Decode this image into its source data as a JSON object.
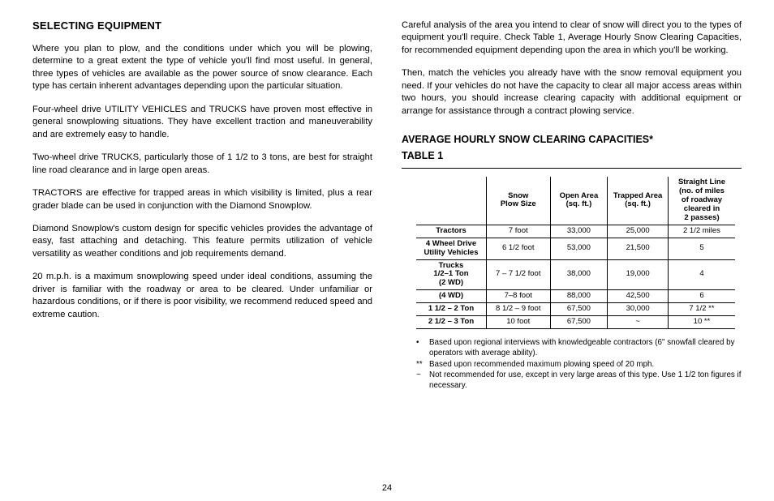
{
  "left": {
    "heading": "SELECTING EQUIPMENT",
    "paras": [
      "Where you plan to plow, and the conditions under which you will be plowing, determine to a great extent the type of vehicle you'll find most useful. In general, three types of vehicles are available as the power source of snow clearance. Each type has certain inherent advantages depending upon the particular situation.",
      "Four-wheel drive UTILITY VEHICLES and TRUCKS have proven most effective in general snowplowing situations. They have excellent traction and maneuverability and are extremely easy to handle.",
      "Two-wheel drive TRUCKS, particularly those of 1 1/2 to 3 tons, are best for straight line road clearance and in large open areas.",
      "TRACTORS are effective for trapped areas in which visibility is limited, plus a rear grader blade can be used in conjunction with the Diamond Snowplow.",
      "Diamond Snowplow's custom design for specific vehicles provides the advantage of easy, fast attaching and detaching. This feature permits uti­lization of vehicle versatility as weather conditions and job requirements demand.",
      "20 m.p.h. is a maximum snowplowing speed under ideal conditions, assuming the driver is familiar with the roadway or area to be cleared. Under unfamiliar or hazardous conditions, or if there is poor visibility, we recommend reduced speed and extreme caution."
    ]
  },
  "right": {
    "paras": [
      "Careful analysis of the area you intend to clear of snow will direct you to the types of equipment you'll require. Check Table 1, Average Hourly Snow Clearing Capacities, for recommended equipment depending upon the area in which you'll be working.",
      "Then, match the vehicles you already have with the snow removal equipment you need. If your vehicles do not have the capacity to clear all major access areas within two hours, you should increase clearing capacity with additional equipment or arrange for assistance through a contract plowing service."
    ],
    "table_title_1": "AVERAGE HOURLY SNOW CLEARING CAPACITIES*",
    "table_title_2": "TABLE 1",
    "table": {
      "headers": [
        "",
        "Snow\nPlow Size",
        "Open Area\n(sq. ft.)",
        "Trapped Area\n(sq. ft.)",
        "Straight Line\n(no. of miles\nof roadway\ncleared in\n2 passes)"
      ],
      "rows": [
        {
          "label": "Tractors",
          "cells": [
            "7 foot",
            "33,000",
            "25,000",
            "2 1/2 miles"
          ]
        },
        {
          "label": "4 Wheel Drive\nUtility Vehicles",
          "cells": [
            "6 1/2 foot",
            "53,000",
            "21,500",
            "5"
          ]
        },
        {
          "label": "Trucks\n1/2–1 Ton\n(2 WD)",
          "cells": [
            "7 – 7 1/2 foot",
            "38,000",
            "19,000",
            "4"
          ]
        },
        {
          "label": "(4 WD)",
          "cells": [
            "7–8 foot",
            "88,000",
            "42,500",
            "6"
          ]
        },
        {
          "label": "1 1/2 – 2 Ton",
          "cells": [
            "8 1/2 – 9 foot",
            "67,500",
            "30,000",
            "7 1/2 **"
          ]
        },
        {
          "label": "2 1/2 – 3 Ton",
          "cells": [
            "10 foot",
            "67,500",
            "~",
            "10 **"
          ]
        }
      ]
    },
    "notes": [
      {
        "marker": "•",
        "text": "Based upon regional interviews with knowledgeable contractors (6\" snowfall cleared by operators with average ability)."
      },
      {
        "marker": "**",
        "text": "Based upon recommended maximum plowing speed of 20 mph."
      },
      {
        "marker": "~",
        "text": "Not recommended for use, except in very large areas of this type. Use 1 1/2 ton figures if necessary."
      }
    ]
  },
  "page_number": "24"
}
